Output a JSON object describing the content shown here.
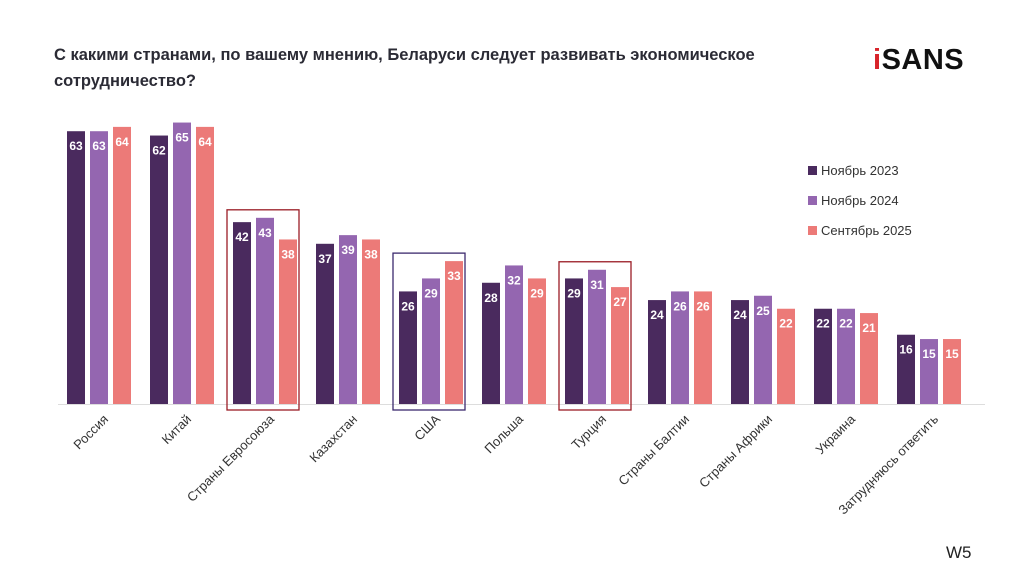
{
  "title": "С какими странами, по вашему мнению, Беларуси следует развивать экономическое сотрудничество?",
  "logo": {
    "prefix": "i",
    "text": "SANS"
  },
  "page_code": "W5",
  "highlight_colors": {
    "eu_box": "#9b1c25",
    "usa_box": "#3b2a6e",
    "turkey_box": "#9b1c25"
  },
  "chart_data": {
    "type": "bar",
    "title": "С какими странами, по вашему мнению, Беларуси следует развивать экономическое сотрудничество?",
    "xlabel": "",
    "ylabel": "",
    "ylim": [
      0,
      70
    ],
    "grid": false,
    "legend_position": "right",
    "categories": [
      "Россия",
      "Китай",
      "Страны Евросоюза",
      "Казахстан",
      "США",
      "Польша",
      "Турция",
      "Страны Балтии",
      "Страны Африки",
      "Украина",
      "Затрудняюсь ответить"
    ],
    "series": [
      {
        "name": "Ноябрь 2023",
        "color": "#4a2a5e",
        "values": [
          63,
          62,
          42,
          37,
          26,
          28,
          29,
          24,
          24,
          22,
          16
        ]
      },
      {
        "name": "Ноябрь 2024",
        "color": "#9466b0",
        "values": [
          63,
          65,
          43,
          39,
          29,
          32,
          31,
          26,
          25,
          22,
          15
        ]
      },
      {
        "name": "Сентябрь 2025",
        "color": "#ec7a78",
        "values": [
          64,
          64,
          38,
          38,
          33,
          29,
          27,
          26,
          22,
          21,
          15
        ]
      }
    ],
    "highlighted_categories": [
      "Страны Евросоюза",
      "США",
      "Турция"
    ]
  }
}
